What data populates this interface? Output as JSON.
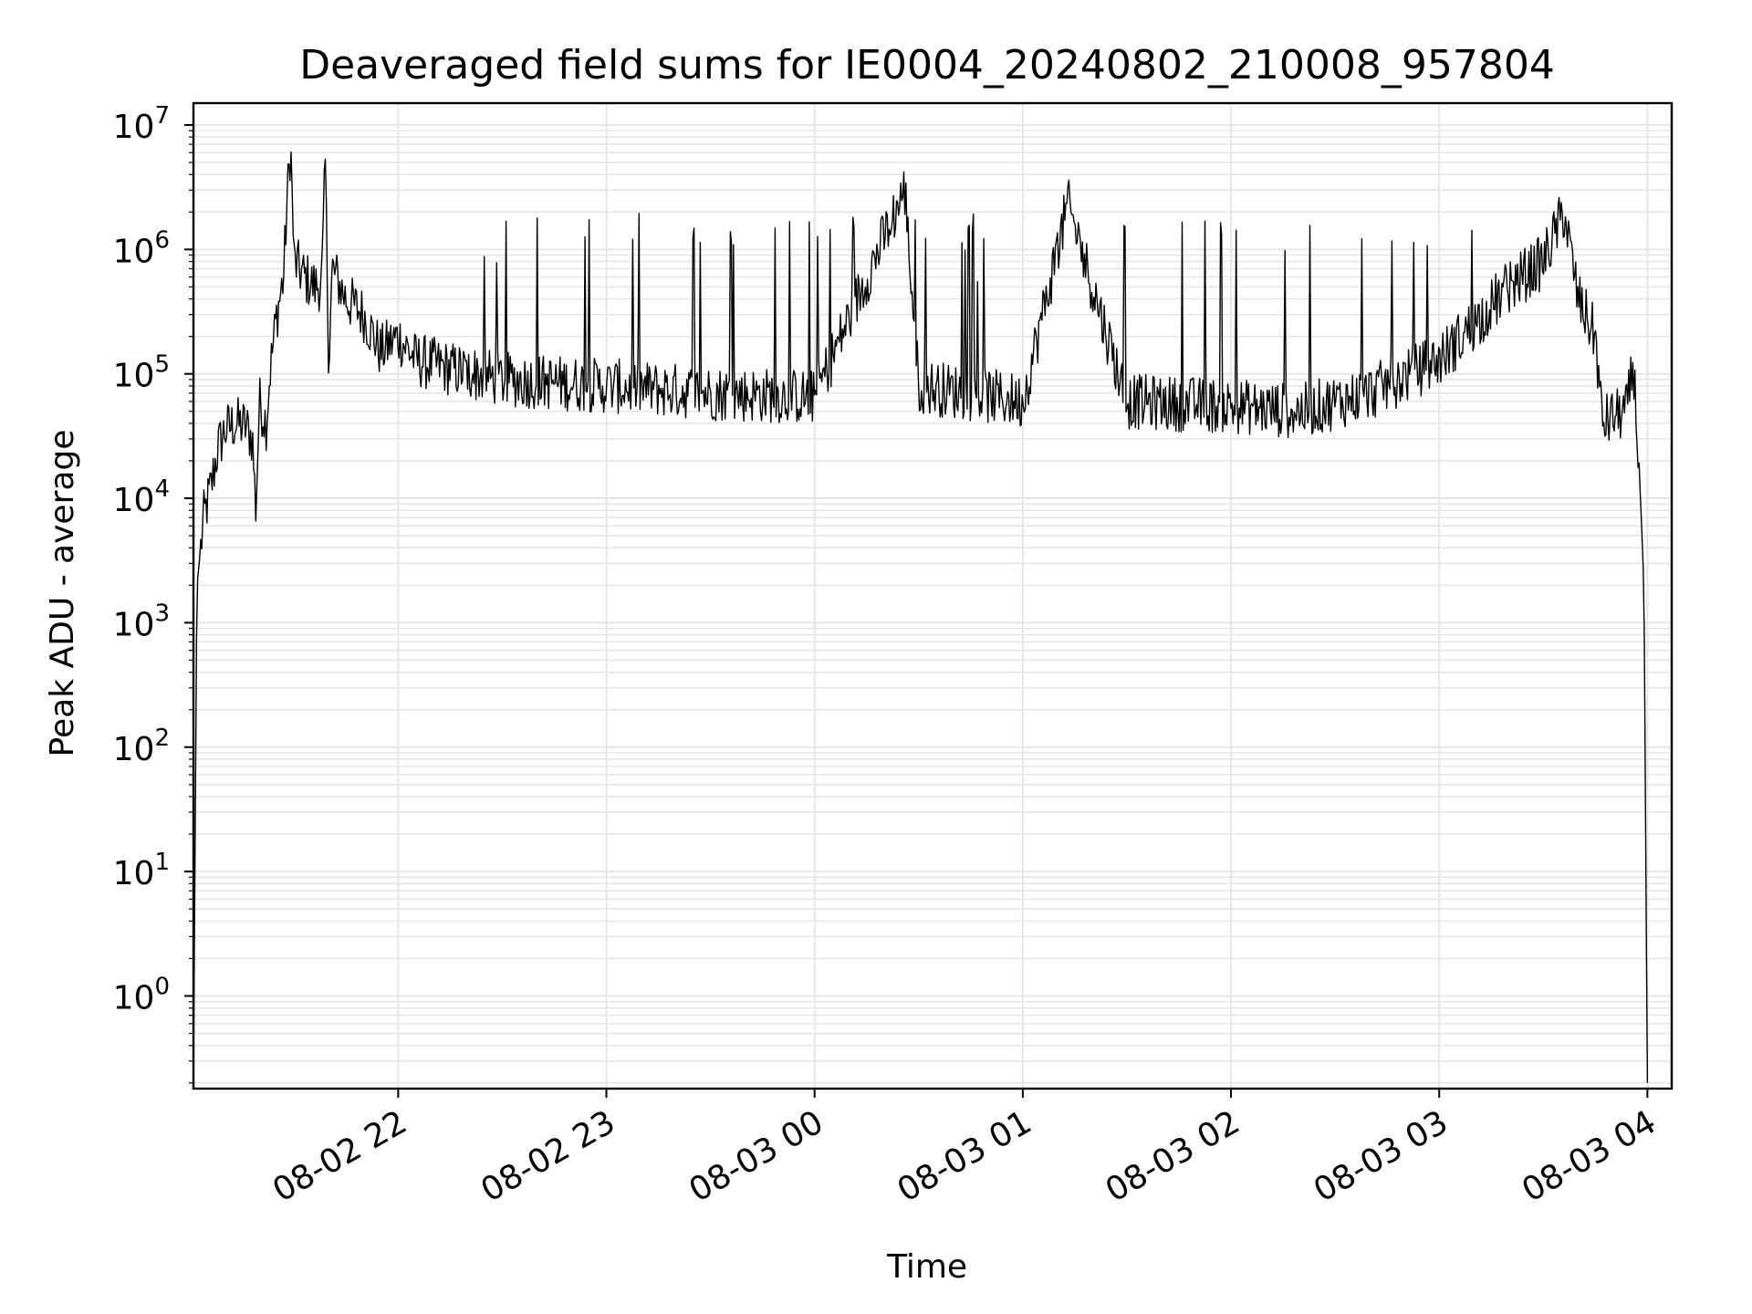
{
  "chart_data": {
    "type": "line",
    "title": "Deaveraged field sums for IE0004_20240802_210008_957804",
    "xlabel": "Time",
    "ylabel": "Peak ADU - average",
    "yscale": "log",
    "ylim": [
      0.18,
      15000000
    ],
    "xlim": [
      "2024-08-02 21:01",
      "2024-08-03 04:07"
    ],
    "grid": true,
    "line_color": "#000000",
    "grid_color": "#e6e6e6",
    "x_ticks": [
      {
        "value": "2024-08-02 22:00",
        "label": "08-02 22"
      },
      {
        "value": "2024-08-02 23:00",
        "label": "08-02 23"
      },
      {
        "value": "2024-08-03 00:00",
        "label": "08-03 00"
      },
      {
        "value": "2024-08-03 01:00",
        "label": "08-03 01"
      },
      {
        "value": "2024-08-03 02:00",
        "label": "08-03 02"
      },
      {
        "value": "2024-08-03 03:00",
        "label": "08-03 03"
      },
      {
        "value": "2024-08-03 04:00",
        "label": "08-03 04"
      }
    ],
    "y_ticks": [
      {
        "value": 1,
        "base": "10",
        "exp": "0"
      },
      {
        "value": 10,
        "base": "10",
        "exp": "1"
      },
      {
        "value": 100,
        "base": "10",
        "exp": "2"
      },
      {
        "value": 1000,
        "base": "10",
        "exp": "3"
      },
      {
        "value": 10000,
        "base": "10",
        "exp": "4"
      },
      {
        "value": 100000,
        "base": "10",
        "exp": "5"
      },
      {
        "value": 1000000,
        "base": "10",
        "exp": "6"
      },
      {
        "value": 10000000,
        "base": "10",
        "exp": "7"
      }
    ],
    "series": [
      {
        "values": [
          [
            "2024-08-02 21:01",
            0.2
          ],
          [
            "2024-08-02 21:02",
            2000
          ],
          [
            "2024-08-02 21:04",
            7000
          ],
          [
            "2024-08-02 21:06",
            12000
          ],
          [
            "2024-08-02 21:08",
            25000
          ],
          [
            "2024-08-02 21:10",
            35000
          ],
          [
            "2024-08-02 21:13",
            40000
          ],
          [
            "2024-08-02 21:16",
            38000
          ],
          [
            "2024-08-02 21:18",
            30000
          ],
          [
            "2024-08-02 21:19",
            8000
          ],
          [
            "2024-08-02 21:20",
            60000
          ],
          [
            "2024-08-02 21:22",
            40000
          ],
          [
            "2024-08-02 21:23",
            100000
          ],
          [
            "2024-08-02 21:25",
            300000
          ],
          [
            "2024-08-02 21:27",
            600000
          ],
          [
            "2024-08-02 21:28",
            2500000
          ],
          [
            "2024-08-02 21:29",
            7000000
          ],
          [
            "2024-08-02 21:30",
            800000
          ],
          [
            "2024-08-02 21:33",
            600000
          ],
          [
            "2024-08-02 21:36",
            500000
          ],
          [
            "2024-08-02 21:38",
            550000
          ],
          [
            "2024-08-02 21:39",
            5000000
          ],
          [
            "2024-08-02 21:40",
            120000
          ],
          [
            "2024-08-02 21:41",
            700000
          ],
          [
            "2024-08-02 21:45",
            400000
          ],
          [
            "2024-08-02 21:50",
            300000
          ],
          [
            "2024-08-02 21:55",
            150000
          ],
          [
            "2024-08-02 22:00",
            200000
          ],
          [
            "2024-08-02 22:05",
            130000
          ],
          [
            "2024-08-02 22:15",
            110000
          ],
          [
            "2024-08-02 22:30",
            90000
          ],
          [
            "2024-08-02 22:45",
            85000
          ],
          [
            "2024-08-02 23:00",
            80000
          ],
          [
            "2024-08-02 23:30",
            70000
          ],
          [
            "2024-08-03 00:00",
            65000
          ],
          [
            "2024-08-03 00:26",
            3000000
          ],
          [
            "2024-08-03 00:30",
            80000
          ],
          [
            "2024-08-03 01:00",
            60000
          ],
          [
            "2024-08-03 01:13",
            2300000
          ],
          [
            "2024-08-03 01:30",
            60000
          ],
          [
            "2024-08-03 02:00",
            55000
          ],
          [
            "2024-08-03 02:20",
            50000
          ],
          [
            "2024-08-03 02:40",
            70000
          ],
          [
            "2024-08-03 03:00",
            130000
          ],
          [
            "2024-08-03 03:10",
            250000
          ],
          [
            "2024-08-03 03:20",
            500000
          ],
          [
            "2024-08-03 03:30",
            800000
          ],
          [
            "2024-08-03 03:36",
            2000000
          ],
          [
            "2024-08-03 03:40",
            400000
          ],
          [
            "2024-08-03 03:45",
            200000
          ],
          [
            "2024-08-03 03:47",
            40000
          ],
          [
            "2024-08-03 03:50",
            45000
          ],
          [
            "2024-08-03 03:54",
            50000
          ],
          [
            "2024-08-03 03:56",
            120000
          ],
          [
            "2024-08-03 03:58",
            10000
          ],
          [
            "2024-08-03 03:59",
            2000
          ],
          [
            "2024-08-03 04:00",
            0.2
          ]
        ]
      }
    ],
    "spike_peaks": [
      800000,
      1200000,
      1800000,
      1700000,
      1600000,
      1700000,
      1600000,
      1800000,
      1500000,
      1700000,
      1600000,
      1600000,
      1700000,
      1800000,
      1500000,
      1600000,
      1700000,
      1800000,
      1600000,
      1700000,
      1500000,
      1600000,
      2000000,
      1700000,
      1800000,
      1600000,
      1500000,
      1700000,
      1600000,
      1800000
    ]
  }
}
